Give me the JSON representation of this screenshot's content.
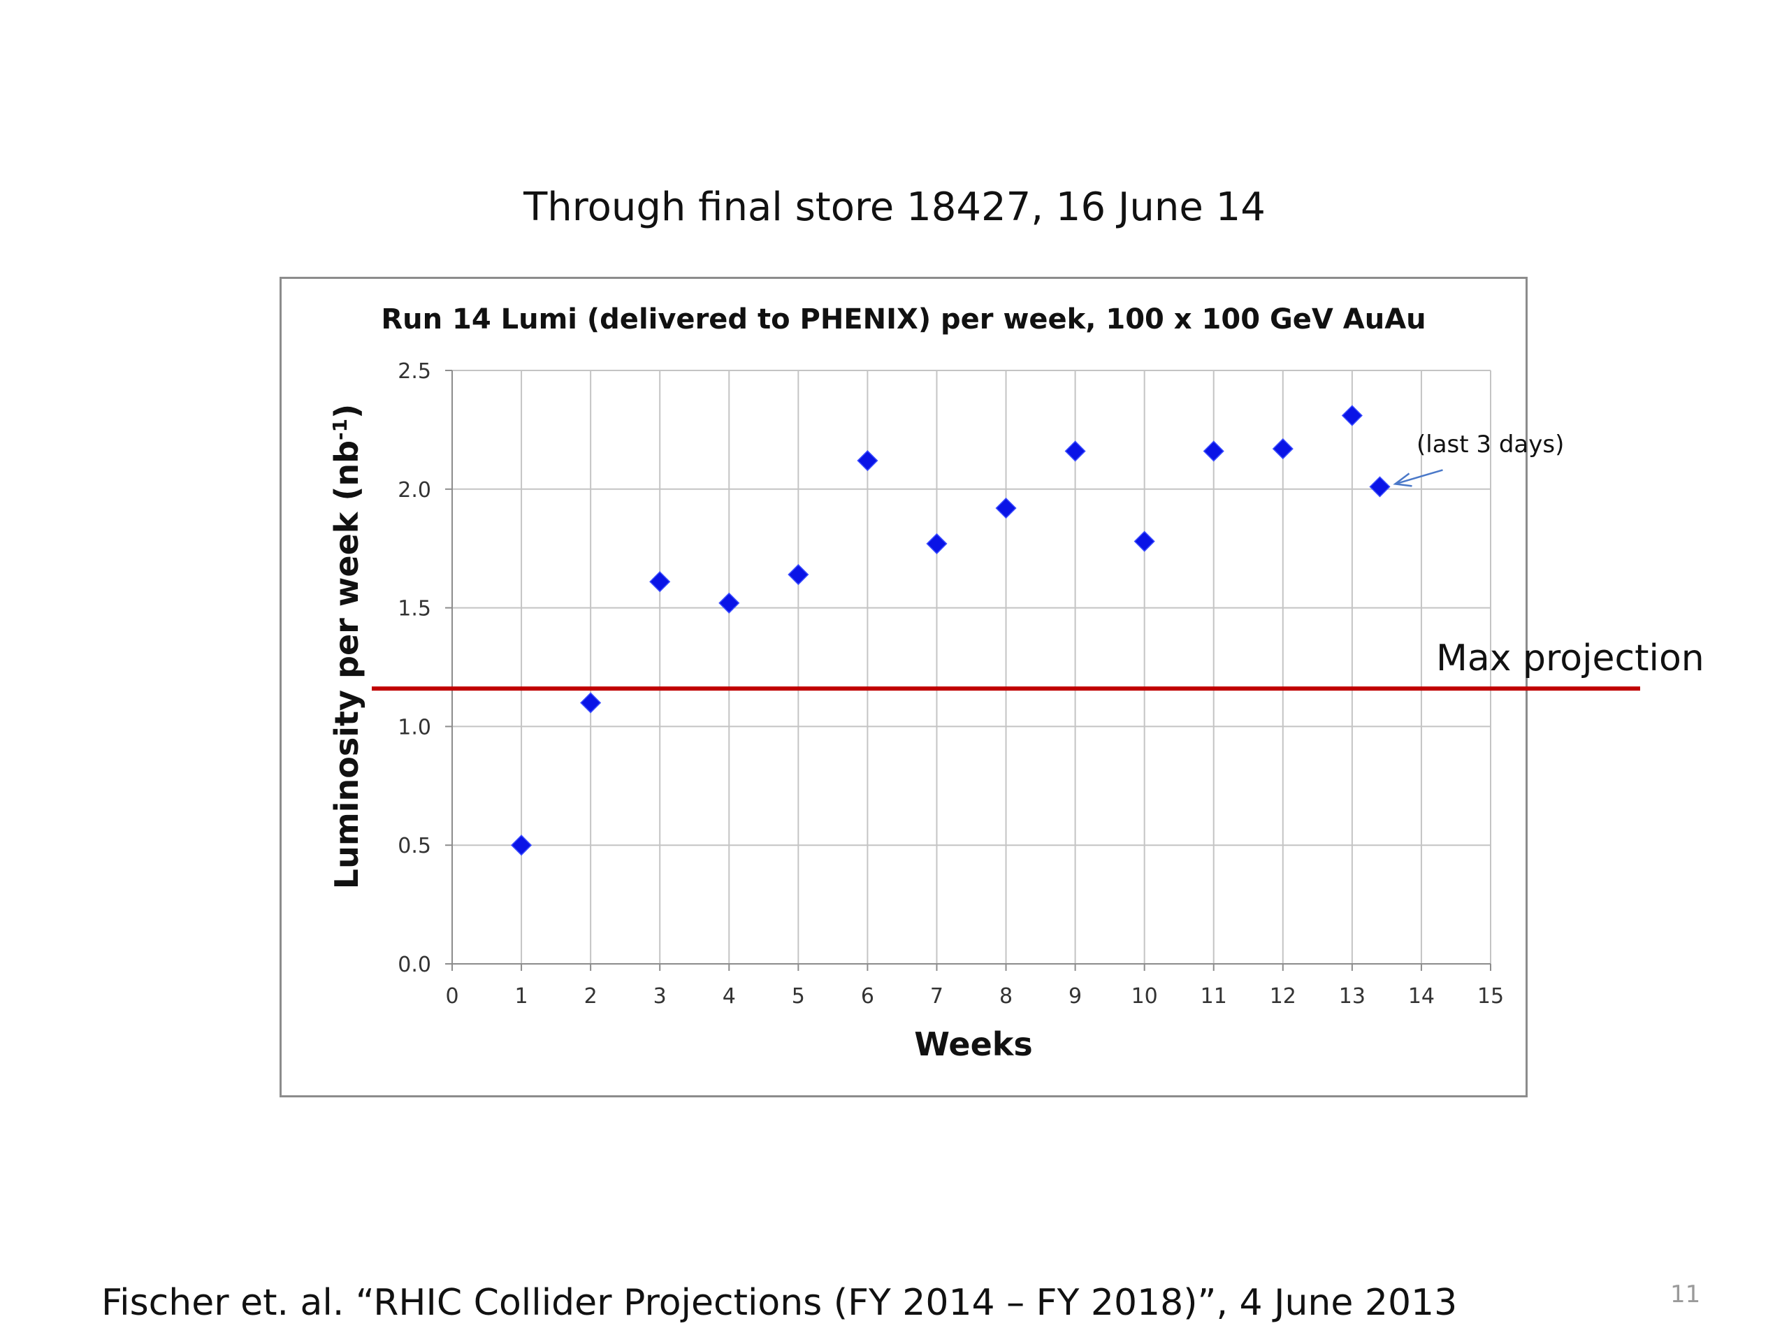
{
  "slide": {
    "heading": "Through final store 18427, 16 June 14",
    "footer": "Fischer et. al. “RHIC Collider Projections (FY 2014 – FY 2018)”, 4 June 2013",
    "page_number": "11"
  },
  "chart_data": {
    "type": "scatter",
    "title": "Run 14 Lumi (delivered to PHENIX) per week, 100 x 100 GeV AuAu",
    "xlabel": "Weeks",
    "ylabel_main": "Luminosity per week (nb",
    "ylabel_sup": "-1",
    "ylabel_close": ")",
    "xlim": [
      0,
      15
    ],
    "ylim": [
      0,
      2.5
    ],
    "x_ticks": [
      "0",
      "1",
      "2",
      "3",
      "4",
      "5",
      "6",
      "7",
      "8",
      "9",
      "10",
      "11",
      "12",
      "13",
      "14",
      "15"
    ],
    "y_ticks": [
      "0.0",
      "0.5",
      "1.0",
      "1.5",
      "2.0",
      "2.5"
    ],
    "grid": true,
    "marker": "diamond",
    "marker_color": "#0a14e6",
    "points": [
      {
        "x": 1,
        "y": 0.5
      },
      {
        "x": 2,
        "y": 1.1
      },
      {
        "x": 3,
        "y": 1.61
      },
      {
        "x": 4,
        "y": 1.52
      },
      {
        "x": 5,
        "y": 1.64
      },
      {
        "x": 6,
        "y": 2.12
      },
      {
        "x": 7,
        "y": 1.77
      },
      {
        "x": 8,
        "y": 1.92
      },
      {
        "x": 9,
        "y": 2.16
      },
      {
        "x": 10,
        "y": 1.78
      },
      {
        "x": 11,
        "y": 2.16
      },
      {
        "x": 12,
        "y": 2.17
      },
      {
        "x": 13,
        "y": 2.31
      },
      {
        "x": 13.4,
        "y": 2.01
      }
    ],
    "annotation": {
      "text": "(last 3 days)",
      "target": {
        "x": 13.4,
        "y": 2.01
      },
      "arrow_color": "#4a78c8"
    },
    "reference_line": {
      "label": "Max projection",
      "y": 1.16,
      "color": "#c00000"
    }
  }
}
